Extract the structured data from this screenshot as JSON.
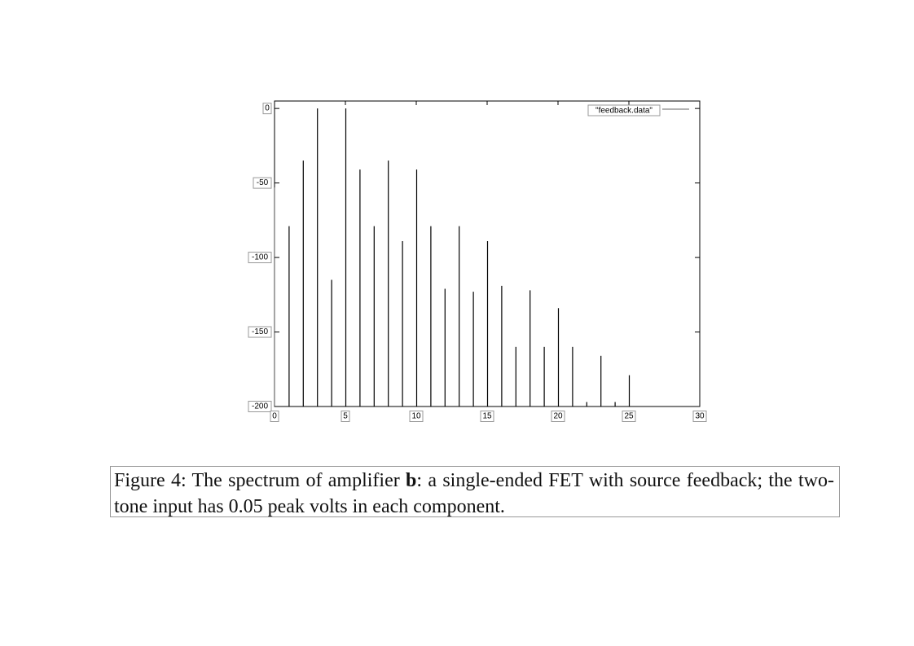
{
  "chart_data": {
    "type": "bar",
    "style": "impulse spectrum lines",
    "legend": {
      "label": "\"feedback.data\"",
      "placement": "top-right"
    },
    "xlim": [
      0,
      30
    ],
    "ylim": [
      -200,
      5
    ],
    "xticks": [
      0,
      5,
      10,
      15,
      20,
      25,
      30
    ],
    "yticks": [
      0,
      -50,
      -100,
      -150,
      -200
    ],
    "grid": false,
    "series": [
      {
        "name": "\"feedback.data\"",
        "x": [
          0,
          1,
          2,
          3,
          4,
          5,
          6,
          7,
          8,
          9,
          10,
          11,
          12,
          13,
          14,
          15,
          16,
          17,
          18,
          19,
          20,
          21,
          22,
          23,
          24,
          25
        ],
        "values": [
          -53,
          -79,
          -35,
          0,
          -115,
          0,
          -41,
          -79,
          -35,
          -89,
          -41,
          -79,
          -121,
          -79,
          -123,
          -89,
          -119,
          -160,
          -122,
          -160,
          -134,
          -160,
          -197,
          -166,
          -197,
          -179
        ]
      }
    ],
    "colors": {
      "line": "#000000",
      "legend_line": "#999999",
      "label_box": "#999999"
    }
  },
  "caption": {
    "prefix": "Figure 4:  The spectrum of amplifier ",
    "bold": "b",
    "suffix": ":  a single-ended FET with source feedback; the two-tone input has 0.05 peak volts in each component."
  }
}
